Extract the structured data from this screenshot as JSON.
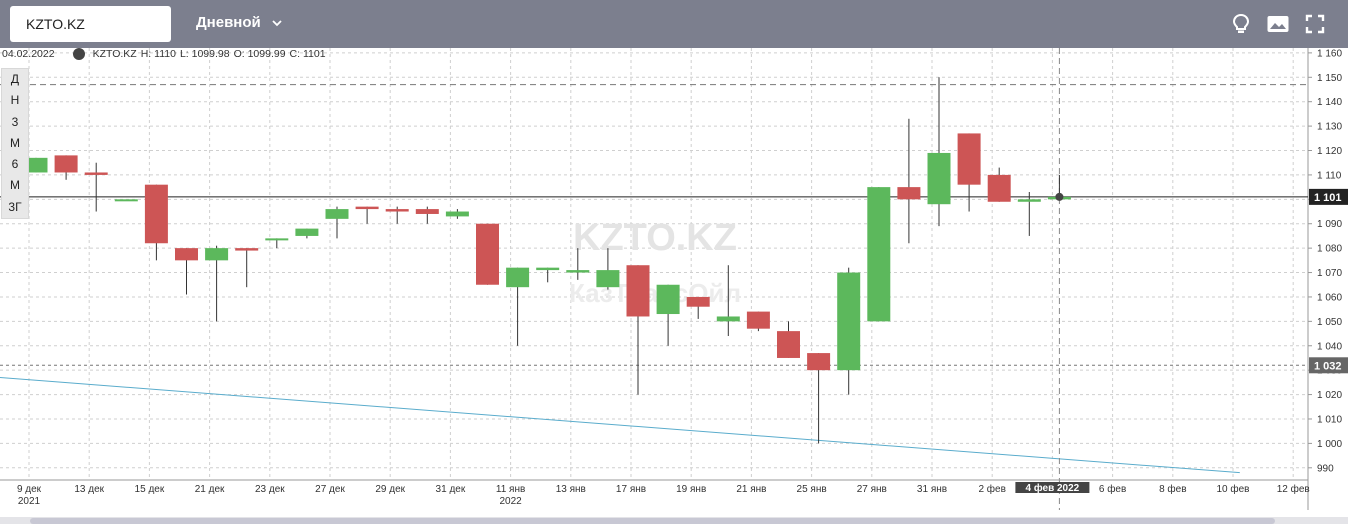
{
  "header": {
    "ticker_value": "KZTO.KZ",
    "period_label": "Дневной",
    "icons": [
      "lightbulb-icon",
      "image-icon",
      "fullscreen-icon"
    ]
  },
  "info_line": {
    "date": "04.02.2022",
    "ticker": "KZTO.KZ",
    "high": "H: 1110",
    "low": "L: 1099.98",
    "open": "O: 1099.99",
    "close": "C: 1101"
  },
  "range_buttons": [
    "Д",
    "Н",
    "3",
    "М",
    "6",
    "М",
    "3Г"
  ],
  "watermark": {
    "line1": "KZTO.KZ",
    "line2": "КазТрансОйл"
  },
  "chart_data": {
    "type": "candlestick",
    "colors": {
      "up": "#5cb85c",
      "down": "#cd5555",
      "trendline": "#5aaccc",
      "price_line": "#222222"
    },
    "ylim": [
      985,
      1162
    ],
    "y_ticks": [
      990,
      1000,
      1010,
      1020,
      1030,
      1040,
      1050,
      1060,
      1070,
      1080,
      1090,
      1100,
      1110,
      1120,
      1130,
      1140,
      1150,
      1160
    ],
    "y_tick_labels": [
      "990",
      "1 000",
      "1 010",
      "1 020",
      "1 030",
      "1 040",
      "1 050",
      "1 060",
      "1 070",
      "1 080",
      "1 090",
      "1 100",
      "1 110",
      "1 120",
      "1 130",
      "1 140",
      "1 150",
      "1 160"
    ],
    "x_labels": [
      {
        "label": "9 дек",
        "sub": "2021"
      },
      {
        "label": "13 дек",
        "sub": ""
      },
      {
        "label": "15 дек",
        "sub": ""
      },
      {
        "label": "21 дек",
        "sub": ""
      },
      {
        "label": "23 дек",
        "sub": ""
      },
      {
        "label": "27 дек",
        "sub": ""
      },
      {
        "label": "29 дек",
        "sub": ""
      },
      {
        "label": "31 дек",
        "sub": ""
      },
      {
        "label": "11 янв",
        "sub": "2022"
      },
      {
        "label": "13 янв",
        "sub": ""
      },
      {
        "label": "17 янв",
        "sub": ""
      },
      {
        "label": "19 янв",
        "sub": ""
      },
      {
        "label": "21 янв",
        "sub": ""
      },
      {
        "label": "25 янв",
        "sub": ""
      },
      {
        "label": "27 янв",
        "sub": ""
      },
      {
        "label": "31 янв",
        "sub": ""
      },
      {
        "label": "2 фев",
        "sub": ""
      },
      {
        "label": "4 фев 2022",
        "sub": "",
        "highlight": true
      },
      {
        "label": "6 фев",
        "sub": ""
      },
      {
        "label": "8 фев",
        "sub": ""
      },
      {
        "label": "10 фев",
        "sub": ""
      },
      {
        "label": "12 фев",
        "sub": ""
      }
    ],
    "candles": [
      {
        "date": "9 дек",
        "o": 1111,
        "h": 1117,
        "l": 1111,
        "c": 1117
      },
      {
        "date": "10 дек",
        "o": 1118,
        "h": 1118,
        "l": 1108,
        "c": 1111
      },
      {
        "date": "13 дек",
        "o": 1111,
        "h": 1115,
        "l": 1095,
        "c": 1110
      },
      {
        "date": "14 дек",
        "o": 1100,
        "h": 1100,
        "l": 1100,
        "c": 1100
      },
      {
        "date": "15 дек",
        "o": 1106,
        "h": 1106,
        "l": 1075,
        "c": 1082
      },
      {
        "date": "16 дек",
        "o": 1080,
        "h": 1080,
        "l": 1061,
        "c": 1075
      },
      {
        "date": "21 дек",
        "o": 1075,
        "h": 1081,
        "l": 1050,
        "c": 1080
      },
      {
        "date": "22 дек",
        "o": 1080,
        "h": 1080,
        "l": 1064,
        "c": 1079
      },
      {
        "date": "23 дек",
        "o": 1084,
        "h": 1084,
        "l": 1080,
        "c": 1084
      },
      {
        "date": "24 дек",
        "o": 1085,
        "h": 1088,
        "l": 1084,
        "c": 1088
      },
      {
        "date": "27 дек",
        "o": 1092,
        "h": 1097,
        "l": 1084,
        "c": 1096
      },
      {
        "date": "28 дек",
        "o": 1097,
        "h": 1097,
        "l": 1090,
        "c": 1096
      },
      {
        "date": "29 дек",
        "o": 1096,
        "h": 1097,
        "l": 1090,
        "c": 1095
      },
      {
        "date": "30 дек",
        "o": 1096,
        "h": 1097,
        "l": 1090,
        "c": 1094
      },
      {
        "date": "31 дек",
        "o": 1093,
        "h": 1096,
        "l": 1092,
        "c": 1095
      },
      {
        "date": "10 янв",
        "o": 1090,
        "h": 1090,
        "l": 1065,
        "c": 1065
      },
      {
        "date": "11 янв",
        "o": 1064,
        "h": 1072,
        "l": 1040,
        "c": 1072
      },
      {
        "date": "12 янв",
        "o": 1071,
        "h": 1072,
        "l": 1066,
        "c": 1072
      },
      {
        "date": "13 янв",
        "o": 1070,
        "h": 1080,
        "l": 1067,
        "c": 1071
      },
      {
        "date": "14 янв",
        "o": 1064,
        "h": 1080,
        "l": 1063,
        "c": 1071
      },
      {
        "date": "17 янв",
        "o": 1073,
        "h": 1073,
        "l": 1020,
        "c": 1052
      },
      {
        "date": "18 янв",
        "o": 1053,
        "h": 1065,
        "l": 1040,
        "c": 1065
      },
      {
        "date": "19 янв",
        "o": 1060,
        "h": 1060,
        "l": 1051,
        "c": 1056
      },
      {
        "date": "20 янв",
        "o": 1050,
        "h": 1073,
        "l": 1044,
        "c": 1052
      },
      {
        "date": "21 янв",
        "o": 1054,
        "h": 1054,
        "l": 1046,
        "c": 1047
      },
      {
        "date": "24 янв",
        "o": 1046,
        "h": 1050,
        "l": 1035,
        "c": 1035
      },
      {
        "date": "25 янв",
        "o": 1037,
        "h": 1037,
        "l": 1000,
        "c": 1030
      },
      {
        "date": "26 янв",
        "o": 1030,
        "h": 1072,
        "l": 1020,
        "c": 1070
      },
      {
        "date": "27 янв",
        "o": 1050,
        "h": 1105,
        "l": 1050,
        "c": 1105
      },
      {
        "date": "28 янв",
        "o": 1105,
        "h": 1133,
        "l": 1082,
        "c": 1100
      },
      {
        "date": "31 янв",
        "o": 1098,
        "h": 1150,
        "l": 1089,
        "c": 1119
      },
      {
        "date": "1 фев",
        "o": 1127,
        "h": 1127,
        "l": 1095,
        "c": 1106
      },
      {
        "date": "2 фев",
        "o": 1110,
        "h": 1113,
        "l": 1099,
        "c": 1099
      },
      {
        "date": "3 фев",
        "o": 1099,
        "h": 1103,
        "l": 1085,
        "c": 1100
      },
      {
        "date": "4 фев",
        "o": 1099.99,
        "h": 1110,
        "l": 1099.98,
        "c": 1101
      }
    ],
    "price_line": {
      "value": 1101,
      "label": "1 101"
    },
    "marker_line": {
      "value": 1032,
      "label": "1 032"
    },
    "dashed_level": {
      "value": 1147
    },
    "trendline": {
      "from": {
        "date": "9 дек",
        "value": 1027
      },
      "to": {
        "date": "8 фев",
        "value": 988
      }
    }
  }
}
